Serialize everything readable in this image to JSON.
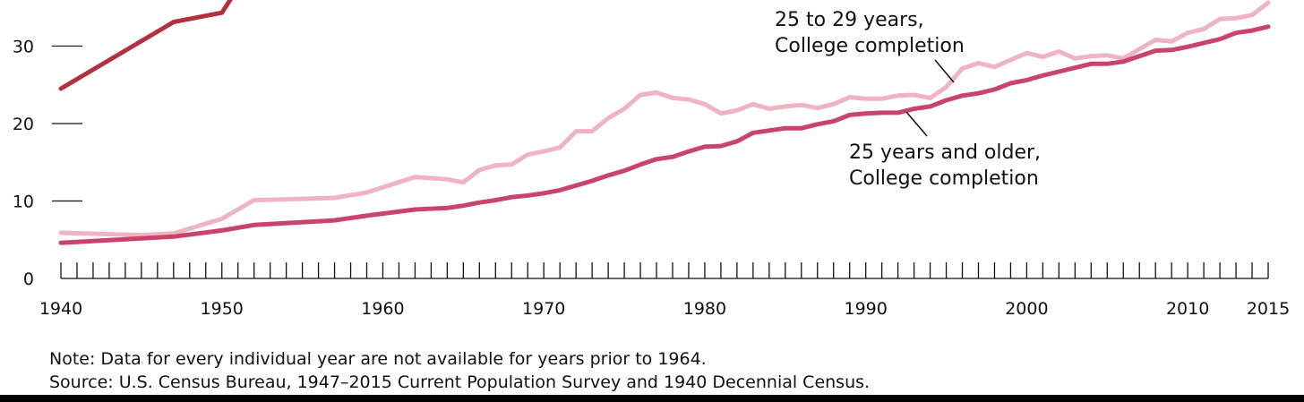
{
  "chart_data": {
    "type": "line",
    "x_ticks": [
      "1940",
      "1950",
      "1960",
      "1970",
      "1980",
      "1990",
      "2000",
      "2010",
      "2015"
    ],
    "y_ticks": [
      "0",
      "10",
      "20",
      "30"
    ],
    "xlim": [
      1940,
      2015.5
    ],
    "ylim": [
      0,
      35.6
    ],
    "grid": false,
    "minor_x_ticks": "every year",
    "series": [
      {
        "color": "#b5303e",
        "x": [
          1940,
          1947,
          1950,
          1951
        ],
        "y": [
          24.5,
          33.1,
          34.3,
          37.5
        ]
      },
      {
        "name": "25 to 29 years, College completion",
        "color": "#efb4c2",
        "x": [
          1940,
          1945,
          1947,
          1950,
          1952,
          1957,
          1959,
          1962,
          1964,
          1965,
          1966,
          1967,
          1968,
          1969,
          1970,
          1971,
          1972,
          1973,
          1974,
          1975,
          1976,
          1977,
          1978,
          1979,
          1980,
          1981,
          1982,
          1983,
          1984,
          1985,
          1986,
          1987,
          1988,
          1989,
          1990,
          1991,
          1992,
          1993,
          1994,
          1995,
          1996,
          1997,
          1998,
          1999,
          2000,
          2001,
          2002,
          2003,
          2004,
          2005,
          2006,
          2007,
          2008,
          2009,
          2010,
          2011,
          2012,
          2013,
          2014,
          2015
        ],
        "y": [
          5.9,
          5.6,
          5.8,
          7.7,
          10.1,
          10.4,
          11.1,
          13.1,
          12.8,
          12.4,
          14.0,
          14.6,
          14.7,
          16.0,
          16.4,
          16.9,
          19.0,
          19.0,
          20.7,
          21.9,
          23.7,
          24.0,
          23.3,
          23.1,
          22.5,
          21.3,
          21.7,
          22.5,
          21.9,
          22.2,
          22.4,
          22.0,
          22.5,
          23.4,
          23.2,
          23.2,
          23.6,
          23.7,
          23.3,
          24.7,
          27.1,
          27.8,
          27.3,
          28.2,
          29.1,
          28.6,
          29.3,
          28.4,
          28.7,
          28.8,
          28.4,
          29.6,
          30.8,
          30.6,
          31.7,
          32.2,
          33.5,
          33.6,
          34.0,
          35.6
        ]
      },
      {
        "name": "25 years and older, College completion",
        "color": "#c9436b",
        "x": [
          1940,
          1947,
          1950,
          1952,
          1957,
          1959,
          1962,
          1964,
          1965,
          1966,
          1967,
          1968,
          1969,
          1970,
          1971,
          1972,
          1973,
          1974,
          1975,
          1976,
          1977,
          1978,
          1979,
          1980,
          1981,
          1982,
          1983,
          1984,
          1985,
          1986,
          1987,
          1988,
          1989,
          1990,
          1991,
          1992,
          1993,
          1994,
          1995,
          1996,
          1997,
          1998,
          1999,
          2000,
          2001,
          2002,
          2003,
          2004,
          2005,
          2006,
          2007,
          2008,
          2009,
          2010,
          2011,
          2012,
          2013,
          2014,
          2015
        ],
        "y": [
          4.6,
          5.4,
          6.2,
          6.9,
          7.5,
          8.1,
          8.9,
          9.1,
          9.4,
          9.8,
          10.1,
          10.5,
          10.7,
          11.0,
          11.4,
          12.0,
          12.6,
          13.3,
          13.9,
          14.7,
          15.4,
          15.7,
          16.4,
          17.0,
          17.1,
          17.7,
          18.8,
          19.1,
          19.4,
          19.4,
          19.9,
          20.3,
          21.1,
          21.3,
          21.4,
          21.4,
          21.9,
          22.2,
          23.0,
          23.6,
          23.9,
          24.4,
          25.2,
          25.6,
          26.2,
          26.7,
          27.2,
          27.7,
          27.7,
          28.0,
          28.7,
          29.4,
          29.5,
          29.9,
          30.4,
          30.9,
          31.7,
          32.0,
          32.5
        ]
      }
    ],
    "annotations": [
      {
        "lines": [
          "25 to 29 years,",
          "College completion"
        ]
      },
      {
        "lines": [
          "25 years and older,",
          "College completion"
        ]
      }
    ]
  },
  "footer": {
    "note": "Note: Data for every individual year are not available for years prior to 1964.",
    "source": "Source: U.S. Census Bureau, 1947–2015 Current Population Survey and 1940 Decennial Census."
  }
}
